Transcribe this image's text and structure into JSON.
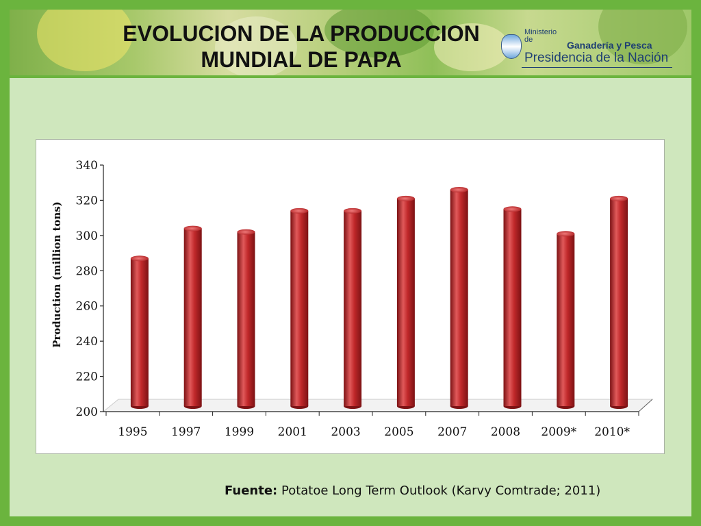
{
  "slide": {
    "title": "EVOLUCION DE LA PRODUCCION\nMUNDIAL DE PAPA"
  },
  "header": {
    "ministry_small": "Ministerio de",
    "ministry_name": "Ganadería y Pesca",
    "presidencia": "Presidencia de la Nación"
  },
  "footer": {
    "source_label": "Fuente:",
    "source_text": "Potatoe Long Term Outlook (Karvy Comtrade; 2011)"
  },
  "colors": {
    "bar_main": "#c0282a",
    "bar_dark": "#7c1214",
    "bar_light": "#e0595a",
    "axis": "#222222"
  },
  "chart_data": {
    "type": "bar",
    "categories": [
      "1995",
      "1997",
      "1999",
      "2001",
      "2003",
      "2005",
      "2007",
      "2008",
      "2009*",
      "2010*"
    ],
    "values": [
      287,
      304,
      302,
      314,
      314,
      321,
      326,
      315,
      301,
      321
    ],
    "ylabel": "Production (million tons)",
    "ylim": [
      200,
      340
    ],
    "yticks": [
      200,
      220,
      240,
      260,
      280,
      300,
      320,
      340
    ],
    "grid": false,
    "legend": "none"
  }
}
